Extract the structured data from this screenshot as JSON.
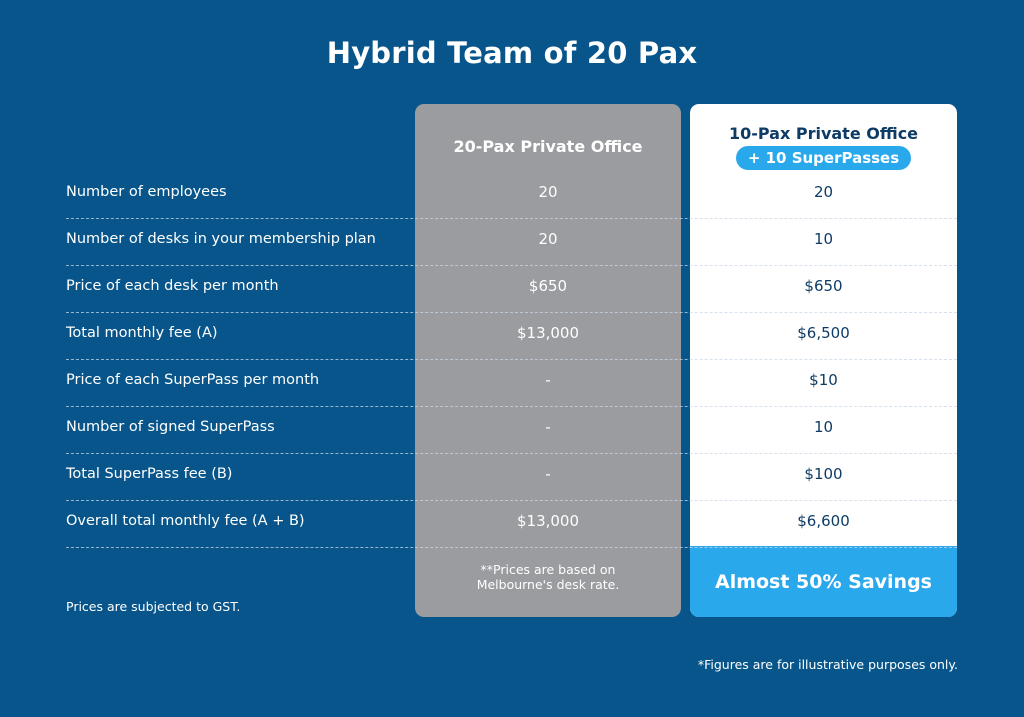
{
  "title": "Hybrid Team of 20 Pax",
  "plan_a": {
    "heading": "20-Pax Private Office",
    "note_line1": "**Prices are based on",
    "note_line2": "Melbourne's desk rate."
  },
  "plan_b": {
    "heading": "10-Pax Private Office",
    "badge": "+ 10 SuperPasses",
    "savings": "Almost 50% Savings"
  },
  "rows": [
    {
      "label": "Number of employees",
      "a": "20",
      "b": "20"
    },
    {
      "label": "Number of desks in your membership plan",
      "a": "20",
      "b": "10"
    },
    {
      "label": "Price of each desk per month",
      "a": "$650",
      "b": "$650"
    },
    {
      "label": "Total monthly fee (A)",
      "a": "$13,000",
      "b": "$6,500"
    },
    {
      "label": "Price of each SuperPass per month",
      "a": "-",
      "b": "$10"
    },
    {
      "label": "Number of signed SuperPass",
      "a": "-",
      "b": "10"
    },
    {
      "label": "Total SuperPass fee (B)",
      "a": "-",
      "b": "$100"
    },
    {
      "label": "Overall total monthly fee (A + B)",
      "a": "$13,000",
      "b": "$6,600"
    }
  ],
  "gst_note": "Prices are subjected to GST.",
  "disclaimer": "*Figures are for illustrative purposes only.",
  "colors": {
    "background": "#07558a",
    "gray_column": "#9a9c9f",
    "accent": "#2aa8ec",
    "dark_text": "#0d3b66"
  }
}
